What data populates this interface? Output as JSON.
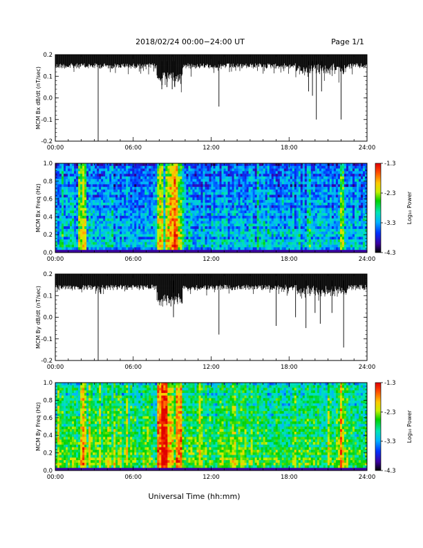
{
  "header": {
    "date_title": "2018/02/24   00:00−24:00 UT",
    "page_label": "Page 1/1"
  },
  "xlabel": "Universal Time (hh:mm)",
  "x_ticks": [
    "00:00",
    "06:00",
    "12:00",
    "18:00",
    "24:00"
  ],
  "colorbar": {
    "ticks": [
      "-1.3",
      "-2.3",
      "-3.3",
      "-4.3"
    ],
    "label": "Log₁₀ Power"
  },
  "chart_data": [
    {
      "type": "line",
      "ylabel": "MCM Bx dB/dt (nT/sec)",
      "xlim": [
        0,
        24
      ],
      "ylim": [
        -0.2,
        0.2
      ],
      "y_ticks": [
        "0.2",
        "0.1",
        "0.0",
        "-0.1",
        "-0.2"
      ],
      "grid": false,
      "baseline_upper": 0.2,
      "noise_lower_typical": 0.16,
      "spikes": [
        {
          "t": 3.3,
          "y": -0.2
        },
        {
          "t": 8.2,
          "y": 0.04
        },
        {
          "t": 8.6,
          "y": 0.05
        },
        {
          "t": 9.0,
          "y": 0.04
        },
        {
          "t": 9.2,
          "y": 0.05
        },
        {
          "t": 12.6,
          "y": -0.04
        },
        {
          "t": 19.5,
          "y": 0.03
        },
        {
          "t": 19.8,
          "y": 0.01
        },
        {
          "t": 20.1,
          "y": -0.1
        },
        {
          "t": 20.5,
          "y": 0.03
        },
        {
          "t": 22.0,
          "y": -0.1
        }
      ]
    },
    {
      "type": "heatmap",
      "ylabel": "MCM Bx Freq (Hz)",
      "xlim": [
        0,
        24
      ],
      "ylim": [
        0.0,
        1.0
      ],
      "y_ticks": [
        "1.0",
        "0.8",
        "0.6",
        "0.4",
        "0.2",
        "0.0"
      ],
      "color_range_log10": [
        -4.3,
        -1.3
      ],
      "background_log10_power": -3.5,
      "activity_bands": [
        {
          "t_start": 1.8,
          "t_end": 2.3,
          "log10_power": -2.6
        },
        {
          "t_start": 8.0,
          "t_end": 8.3,
          "log10_power": -2.4
        },
        {
          "t_start": 8.6,
          "t_end": 8.9,
          "log10_power": -2.3
        },
        {
          "t_start": 8.9,
          "t_end": 9.4,
          "log10_power": -2.1
        },
        {
          "t_start": 9.5,
          "t_end": 9.7,
          "log10_power": -2.6
        },
        {
          "t_start": 22.0,
          "t_end": 22.2,
          "log10_power": -2.7
        }
      ]
    },
    {
      "type": "line",
      "ylabel": "MCM By dB/dt (nT/sec)",
      "xlim": [
        0,
        24
      ],
      "ylim": [
        -0.2,
        0.2
      ],
      "y_ticks": [
        "0.2",
        "0.1",
        "0.0",
        "-0.1",
        "-0.2"
      ],
      "grid": false,
      "baseline_upper": 0.2,
      "noise_lower_typical": 0.15,
      "spikes": [
        {
          "t": 3.3,
          "y": -0.2
        },
        {
          "t": 8.9,
          "y": 0.05
        },
        {
          "t": 9.1,
          "y": 0.0
        },
        {
          "t": 12.6,
          "y": -0.08
        },
        {
          "t": 17.0,
          "y": -0.04
        },
        {
          "t": 18.5,
          "y": 0.0
        },
        {
          "t": 19.3,
          "y": -0.05
        },
        {
          "t": 20.0,
          "y": 0.02
        },
        {
          "t": 20.4,
          "y": -0.03
        },
        {
          "t": 21.3,
          "y": 0.02
        },
        {
          "t": 22.2,
          "y": -0.14
        }
      ]
    },
    {
      "type": "heatmap",
      "ylabel": "MCM By Freq (Hz)",
      "xlim": [
        0,
        24
      ],
      "ylim": [
        0.0,
        1.0
      ],
      "y_ticks": [
        "1.0",
        "0.8",
        "0.6",
        "0.4",
        "0.2",
        "0.0"
      ],
      "color_range_log10": [
        -4.3,
        -1.3
      ],
      "background_log10_power": -2.9,
      "activity_bands": [
        {
          "t_start": 2.0,
          "t_end": 2.3,
          "log10_power": -2.4
        },
        {
          "t_start": 8.0,
          "t_end": 8.3,
          "log10_power": -1.9
        },
        {
          "t_start": 8.2,
          "t_end": 8.5,
          "log10_power": -1.5
        },
        {
          "t_start": 8.8,
          "t_end": 9.0,
          "log10_power": -2.3
        },
        {
          "t_start": 9.3,
          "t_end": 9.6,
          "log10_power": -2.0
        },
        {
          "t_start": 22.0,
          "t_end": 22.2,
          "log10_power": -2.4
        }
      ]
    }
  ]
}
